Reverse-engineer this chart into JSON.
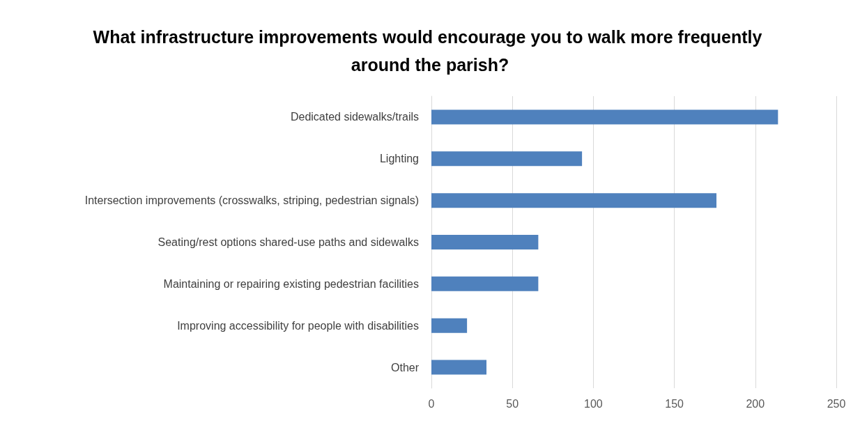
{
  "chart_data": {
    "type": "bar",
    "orientation": "horizontal",
    "title": "What infrastructure improvements would encourage you to walk more frequently around the parish?",
    "categories": [
      "Dedicated sidewalks/trails",
      "Lighting",
      "Intersection improvements (crosswalks, striping, pedestrian signals)",
      "Seating/rest options shared-use paths and sidewalks",
      "Maintaining or repairing existing pedestrian facilities",
      "Improving accessibility for people with disabilities",
      "Other"
    ],
    "values": [
      214,
      93,
      176,
      66,
      66,
      22,
      34
    ],
    "color": "#4f81bd",
    "xlim": [
      0,
      250
    ],
    "xticks": [
      0,
      50,
      100,
      150,
      200,
      250
    ],
    "grid": "x"
  }
}
